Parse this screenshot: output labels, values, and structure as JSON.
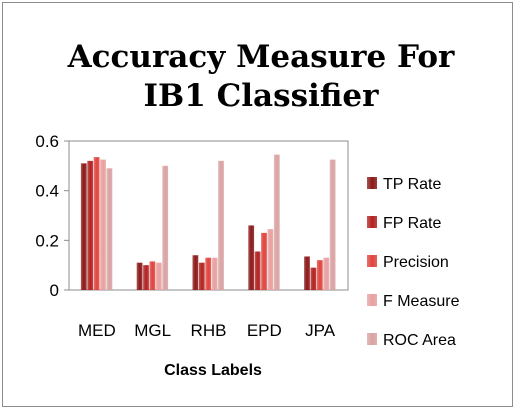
{
  "chart_data": {
    "type": "bar",
    "title": "Accuracy Measure For IB1 Classifier",
    "title_lines": [
      "Accuracy Measure For",
      "IB1 Classifier"
    ],
    "xlabel": "Class Labels",
    "ylabel": "",
    "categories": [
      "MED",
      "MGL",
      "RHB",
      "EPD",
      "JPA"
    ],
    "ylim": [
      0,
      0.6
    ],
    "yticks": [
      "0",
      "0.2",
      "0.4",
      "0.6"
    ],
    "grid": false,
    "legend_position": "right",
    "series": [
      {
        "name": "TP Rate",
        "values": [
          0.51,
          0.11,
          0.14,
          0.26,
          0.135
        ],
        "color": "#8b1a1a"
      },
      {
        "name": "FP Rate",
        "values": [
          0.52,
          0.1,
          0.11,
          0.155,
          0.09
        ],
        "color": "#b22222"
      },
      {
        "name": "Precision",
        "values": [
          0.535,
          0.115,
          0.13,
          0.23,
          0.12
        ],
        "color": "#e0443e"
      },
      {
        "name": "F Measure",
        "values": [
          0.525,
          0.11,
          0.13,
          0.245,
          0.13
        ],
        "color": "#e8a0a0"
      },
      {
        "name": "ROC Area",
        "values": [
          0.49,
          0.5,
          0.52,
          0.545,
          0.525
        ],
        "color": "#d9a3a3"
      }
    ]
  }
}
